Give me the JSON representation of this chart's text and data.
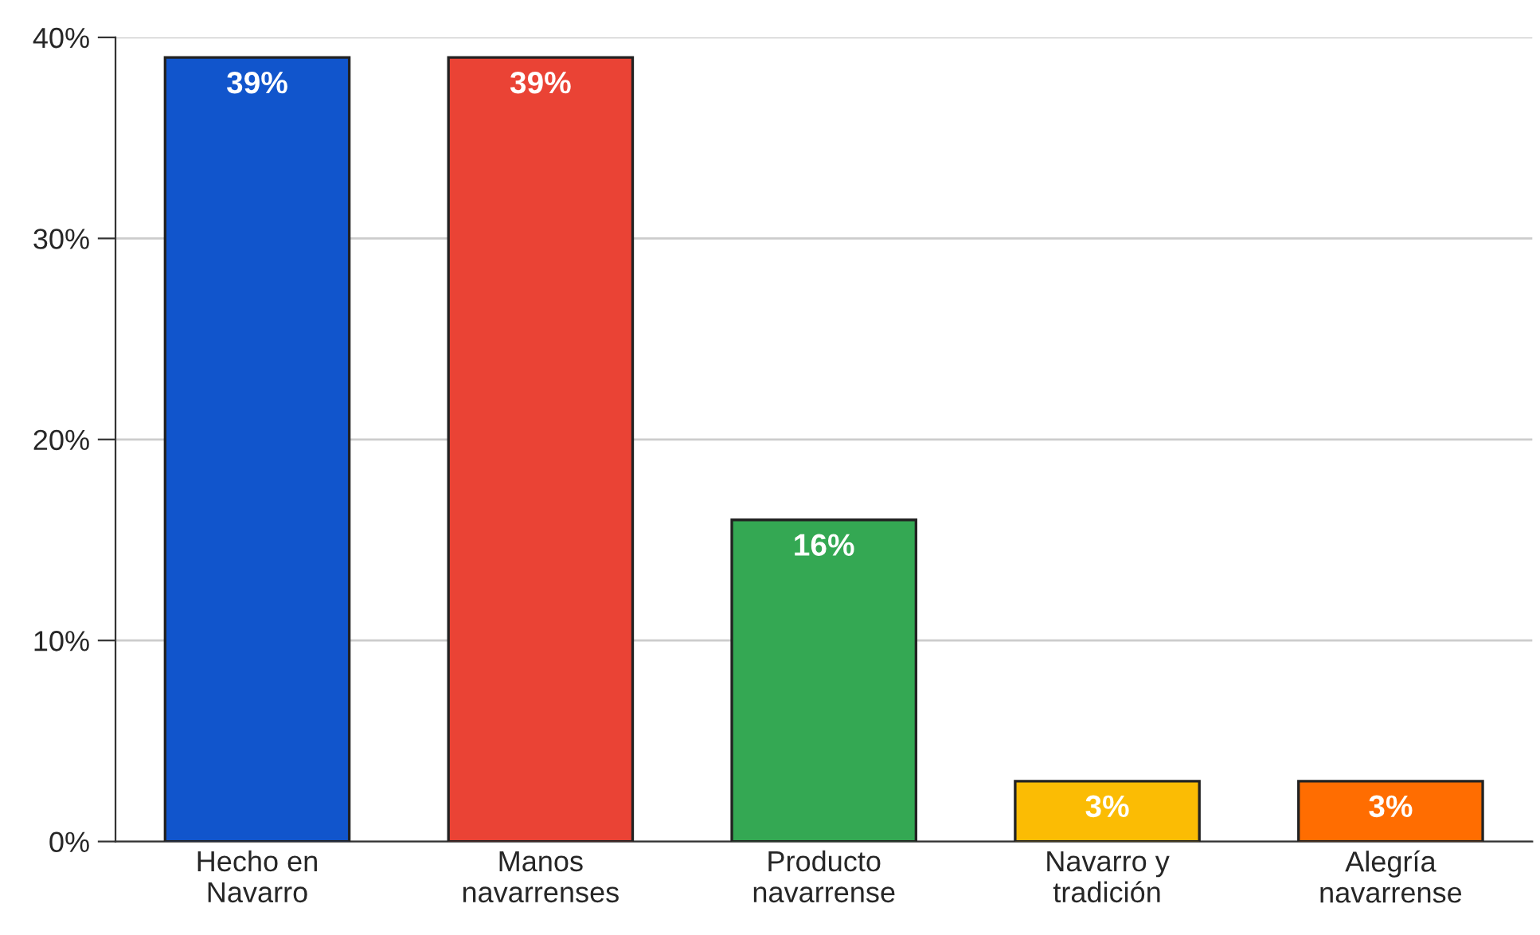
{
  "chart_data": {
    "type": "bar",
    "categories": [
      "Hecho en\nNavarro",
      "Manos\nnavarrenses",
      "Producto\nnavarrense",
      "Navarro y\ntradición",
      "Alegría\nnavarrense"
    ],
    "values": [
      39,
      39,
      16,
      3,
      3
    ],
    "value_labels": [
      "39%",
      "39%",
      "16%",
      "3%",
      "3%"
    ],
    "colors": [
      "#1155cc",
      "#ea4335",
      "#34a853",
      "#fbbc04",
      "#ff6d01"
    ],
    "ylim": [
      0,
      40
    ],
    "yticks": [
      {
        "value": 0,
        "label": "0%"
      },
      {
        "value": 10,
        "label": "10%"
      },
      {
        "value": 20,
        "label": "20%"
      },
      {
        "value": 30,
        "label": "30%"
      },
      {
        "value": 40,
        "label": "40%"
      }
    ],
    "grid": "y"
  }
}
